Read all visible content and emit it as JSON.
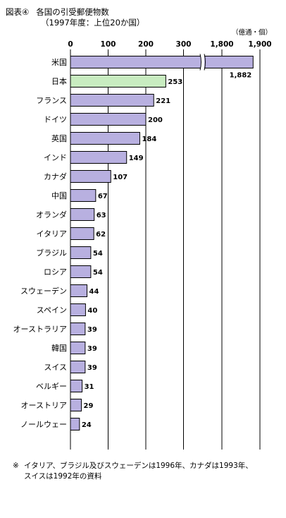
{
  "figure": {
    "label": "図表④",
    "title": "各国の引受郵便物数",
    "subtitle": "（1997年度：上位20か国）",
    "unit": "（億通・個）",
    "footnote_mark": "※",
    "footnote_line1": "イタリア、ブラジル及びスウェーデンは1996年、カナダは1993年、",
    "footnote_line2": "スイスは1992年の資料"
  },
  "colors": {
    "bar_default": "#b8b0e0",
    "bar_highlight": "#c8ecc0",
    "bar_stroke": "#000000",
    "grid": "#000000"
  },
  "chart_data": {
    "type": "bar",
    "orientation": "horizontal",
    "categories": [
      "米国",
      "日本",
      "フランス",
      "ドイツ",
      "英国",
      "インド",
      "カナダ",
      "中国",
      "オランダ",
      "イタリア",
      "ブラジル",
      "ロシア",
      "スウェーデン",
      "スペイン",
      "オーストラリア",
      "韓国",
      "スイス",
      "ベルギー",
      "オーストリア",
      "ノールウェー"
    ],
    "values": [
      1882,
      253,
      221,
      200,
      184,
      149,
      107,
      67,
      63,
      62,
      54,
      54,
      44,
      40,
      39,
      39,
      39,
      31,
      29,
      24
    ],
    "value_labels": [
      "1,882",
      "253",
      "221",
      "200",
      "184",
      "149",
      "107",
      "67",
      "63",
      "62",
      "54",
      "54",
      "44",
      "40",
      "39",
      "39",
      "39",
      "31",
      "29",
      "24"
    ],
    "highlight_index": 1,
    "xticks": [
      0,
      100,
      200,
      300,
      1800,
      1900
    ],
    "xtick_labels": [
      "0",
      "100",
      "200",
      "300",
      "1,800",
      "1,900"
    ],
    "axis_break": [
      350,
      1750
    ],
    "xlim": [
      0,
      1900
    ],
    "grid": true
  }
}
